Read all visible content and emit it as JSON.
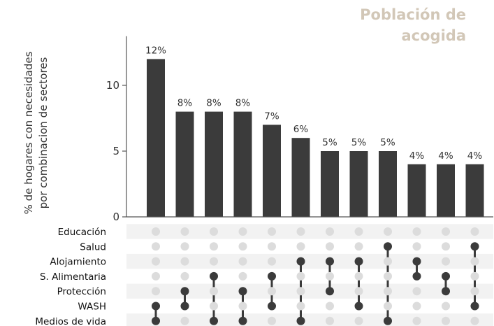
{
  "chart_data": {
    "type": "bar",
    "title_lines": [
      "Población de",
      "acogida"
    ],
    "ylabel_lines": [
      "% de hogares con necesidades",
      "por combinacion de sectores"
    ],
    "xlabel": "",
    "ylim": [
      0,
      14
    ],
    "yticks": [
      0,
      5,
      10
    ],
    "values": [
      12,
      8,
      8,
      8,
      7,
      6,
      5,
      5,
      5,
      4,
      4,
      4
    ],
    "value_labels": [
      "12%",
      "8%",
      "8%",
      "8%",
      "7%",
      "6%",
      "5%",
      "5%",
      "5%",
      "4%",
      "4%",
      "4%"
    ],
    "sets": [
      "Educación",
      "Salud",
      "Alojamiento",
      "S. Alimentaria",
      "Protección",
      "WASH",
      "Medios de vida"
    ],
    "combinations": [
      [
        "WASH",
        "Medios de vida"
      ],
      [
        "Protección",
        "WASH"
      ],
      [
        "S. Alimentaria",
        "Medios de vida"
      ],
      [
        "Protección",
        "Medios de vida"
      ],
      [
        "S. Alimentaria",
        "WASH"
      ],
      [
        "Alojamiento",
        "Medios de vida"
      ],
      [
        "Alojamiento",
        "Protección"
      ],
      [
        "Alojamiento",
        "WASH"
      ],
      [
        "Salud",
        "Medios de vida"
      ],
      [
        "Alojamiento",
        "S. Alimentaria"
      ],
      [
        "S. Alimentaria",
        "Protección"
      ],
      [
        "Salud",
        "WASH"
      ]
    ],
    "grid": false,
    "colors": {
      "bar": "#3b3b3b",
      "dot_active": "#3b3b3b",
      "dot_inactive": "#dcdcdc",
      "stripe": "#f2f2f2",
      "title": "#d2c7b7",
      "text": "#333333"
    }
  }
}
